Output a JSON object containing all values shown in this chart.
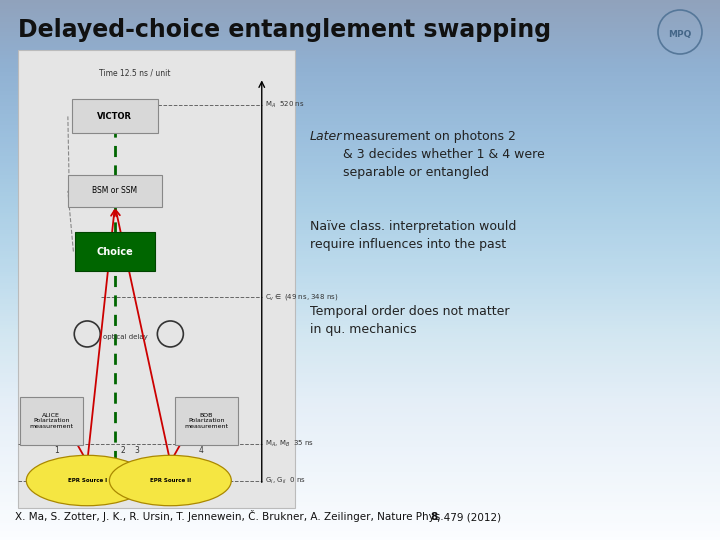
{
  "title": "Delayed-choice entanglement swapping",
  "text_later_italic": "Later",
  "text_later_rest": " measurement on photons 2\n& 3 decides whether 1 & 4 were\nseparable or entangled",
  "text_naive": "Naïve class. interpretation would\nrequire influences into the past",
  "text_temporal": "Temporal order does not matter\nin qu. mechanics",
  "citation_plain": "X. Ma, S. Zotter, J. K., R. Ursin, T. Jennewein, Č. Brukner, A. Zeilinger, Nature Phys. ",
  "citation_bold": "8",
  "citation_end": ", 479 (2012)",
  "victor_label": "VICTOR",
  "bsm_label": "BSM or SSM",
  "choice_label": "Choice",
  "alice_label": "ALICE\nPolarization\nmeasurement",
  "bob_label": "BOB\nPolarization\nmeasurement",
  "epr1_label": "EPR Source I",
  "epr2_label": "EPR Source II",
  "time_label": "Time 12.5 ns / unit",
  "optical_delay_label": "optical delay",
  "bg_color_top": "#c5d8ec",
  "bg_color_bottom": "#ffffff",
  "diagram_bg": "#e8e8e8",
  "green_line_color": "#006600",
  "green_box_color": "#006600",
  "red_color": "#cc0000",
  "yellow_color": "#f5e642",
  "gray_box_color": "#d0d0d0",
  "text_color": "#222222",
  "title_color": "#111111",
  "dashed_color": "#888888"
}
